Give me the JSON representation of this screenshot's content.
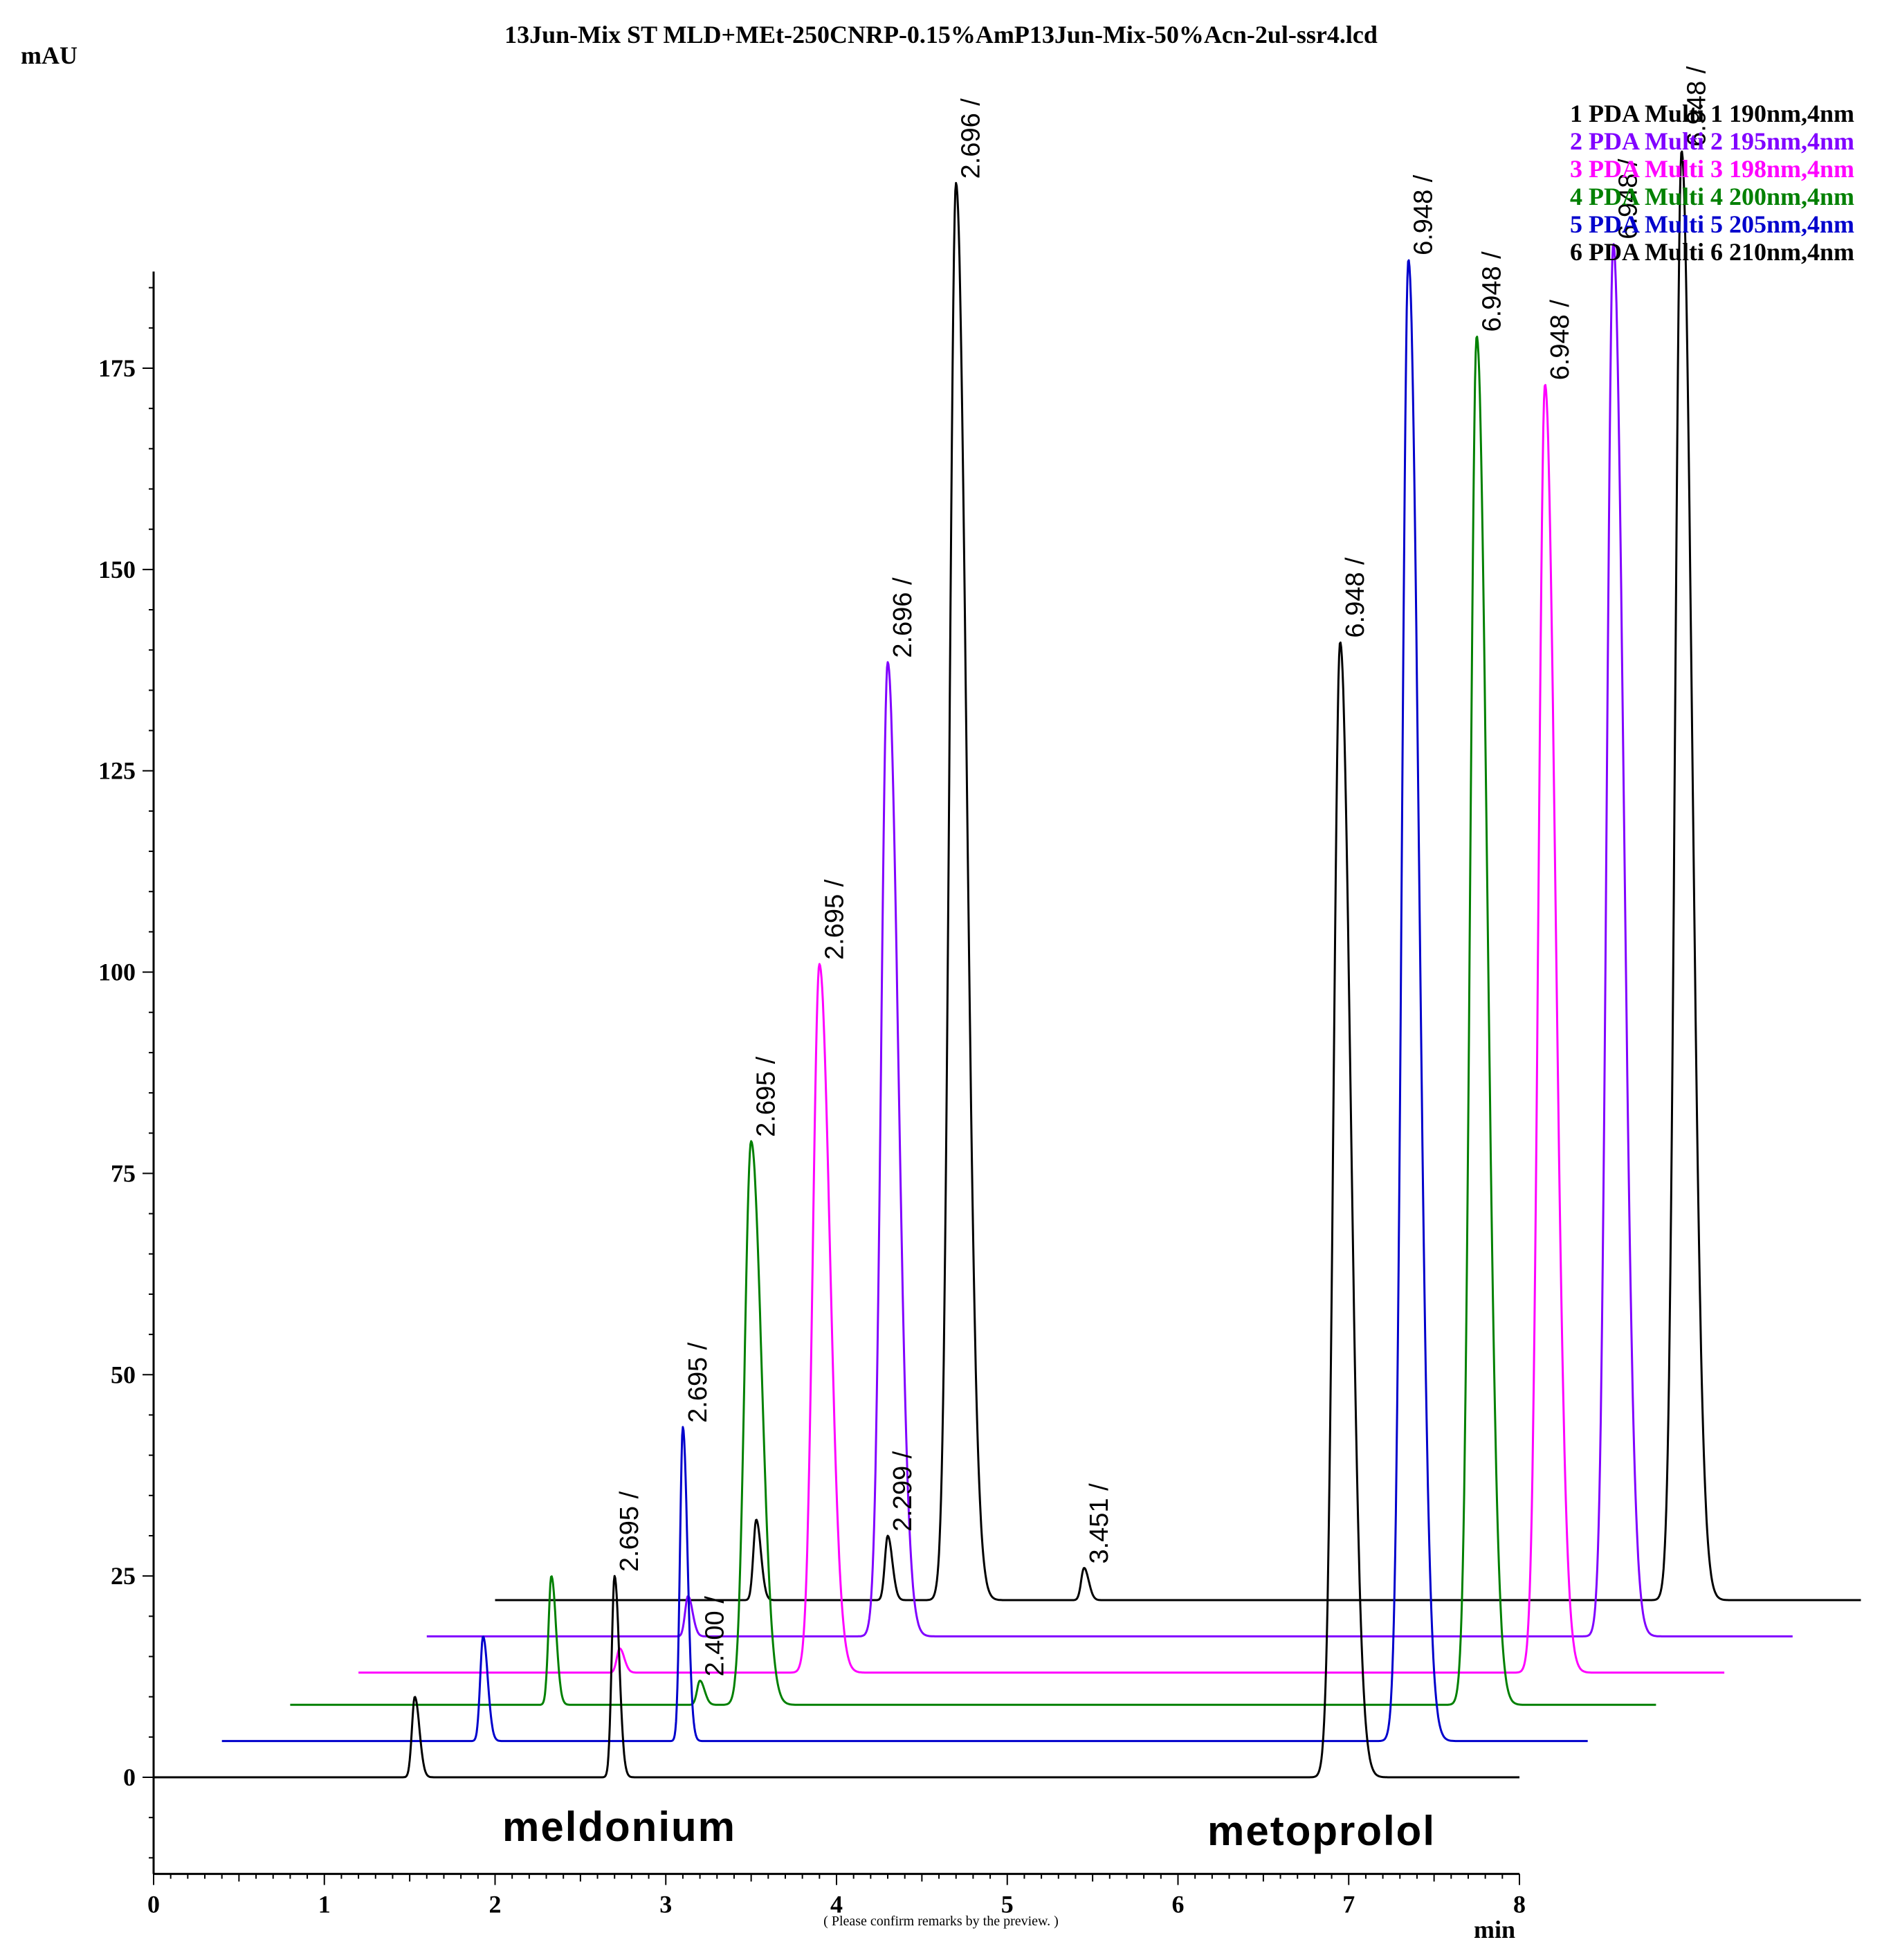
{
  "chart_data": {
    "type": "line",
    "title": "13Jun-Mix ST MLD+MEt-250CNRP-0.15%AmP13Jun-Mix-50%Acn-2ul-ssr4.lcd",
    "ylabel": "mAU",
    "xlabel": "min",
    "xlim": [
      0,
      8
    ],
    "ylim": [
      -12,
      187
    ],
    "x_ticks": [
      "0",
      "1",
      "2",
      "3",
      "4",
      "5",
      "6",
      "7",
      "8"
    ],
    "y_ticks": [
      "0",
      "25",
      "50",
      "75",
      "100",
      "125",
      "150",
      "175"
    ],
    "remark": "( Please confirm remarks by the preview. )",
    "annotations": [
      "meldonium",
      "metoprolol"
    ],
    "series": [
      {
        "name": "1 PDA Multi 1 190nm,4nm",
        "color": "#000000",
        "x_offset_min": 2.0,
        "y_offset_mau": 22,
        "x_range": [
          0,
          8
        ],
        "peaks": [
          {
            "rt": 1.53,
            "height": 10,
            "label": ""
          },
          {
            "rt": 2.3,
            "height": 8,
            "label": "2.299"
          },
          {
            "rt": 2.7,
            "height": 176,
            "label": "2.696"
          },
          {
            "rt": 3.45,
            "height": 4,
            "label": "3.451"
          },
          {
            "rt": 6.95,
            "height": 180,
            "label": "6.948"
          }
        ]
      },
      {
        "name": "2 PDA Multi 2 195nm,4nm",
        "color": "#8000ff",
        "x_offset_min": 1.6,
        "y_offset_mau": 17.5,
        "x_range": [
          0,
          8
        ],
        "peaks": [
          {
            "rt": 1.53,
            "height": 5,
            "label": ""
          },
          {
            "rt": 2.7,
            "height": 121,
            "label": "2.696"
          },
          {
            "rt": 6.95,
            "height": 173,
            "label": "6.948"
          }
        ]
      },
      {
        "name": "3 PDA Multi 3 198nm,4nm",
        "color": "#ff00ff",
        "x_offset_min": 1.2,
        "y_offset_mau": 13,
        "x_range": [
          0,
          8
        ],
        "peaks": [
          {
            "rt": 1.53,
            "height": 3,
            "label": ""
          },
          {
            "rt": 2.7,
            "height": 88,
            "label": "2.695"
          },
          {
            "rt": 6.95,
            "height": 160,
            "label": "6.948"
          }
        ]
      },
      {
        "name": "4 PDA Multi 4 200nm,4nm",
        "color": "#008000",
        "x_offset_min": 0.8,
        "y_offset_mau": 9,
        "x_range": [
          0,
          8
        ],
        "peaks": [
          {
            "rt": 1.53,
            "height": 16,
            "label": ""
          },
          {
            "rt": 2.4,
            "height": 3,
            "label": "2.400"
          },
          {
            "rt": 2.7,
            "height": 70,
            "label": "2.695"
          },
          {
            "rt": 6.95,
            "height": 170,
            "label": "6.948"
          }
        ]
      },
      {
        "name": "5 PDA Multi 5 205nm,4nm",
        "color": "#0000cc",
        "x_offset_min": 0.4,
        "y_offset_mau": 4.5,
        "x_range": [
          0,
          8
        ],
        "peaks": [
          {
            "rt": 1.53,
            "height": 13,
            "label": ""
          },
          {
            "rt": 2.7,
            "height": 39,
            "label": "2.695"
          },
          {
            "rt": 6.95,
            "height": 184,
            "label": "6.948"
          }
        ]
      },
      {
        "name": "6 PDA Multi 6 210nm,4nm",
        "color": "#000000",
        "x_offset_min": 0.0,
        "y_offset_mau": 0,
        "x_range": [
          0,
          8
        ],
        "peaks": [
          {
            "rt": 1.53,
            "height": 10,
            "label": ""
          },
          {
            "rt": 2.7,
            "height": 25,
            "label": "2.695"
          },
          {
            "rt": 6.95,
            "height": 141,
            "label": "6.948"
          }
        ]
      }
    ]
  }
}
